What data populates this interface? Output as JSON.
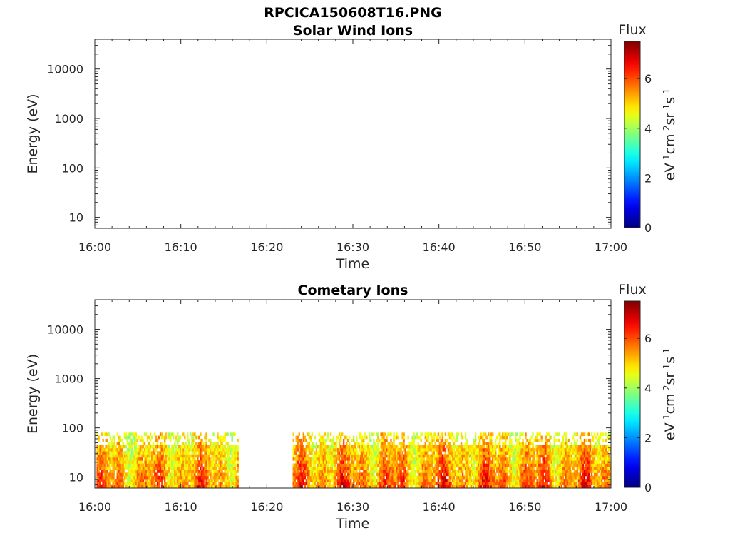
{
  "figure_title": "RPCICA150608T16.PNG",
  "chart_data": [
    {
      "type": "heatmap",
      "title": "Solar Wind Ions",
      "xlabel": "Time",
      "ylabel": "Energy (eV)",
      "x_ticks": [
        "16:00",
        "16:10",
        "16:20",
        "16:30",
        "16:40",
        "16:50",
        "17:00"
      ],
      "x_range_minutes": [
        0,
        60
      ],
      "y_scale": "log",
      "y_ticks": [
        "10",
        "100",
        "1000",
        "10000"
      ],
      "y_range": [
        6,
        40000
      ],
      "colorbar": {
        "label": "Flux",
        "unit_text": "eV-1cm-2sr-1s-1",
        "ticks": [
          "0",
          "2",
          "4",
          "6"
        ],
        "range": [
          0,
          7.5
        ],
        "colormap": "jet"
      },
      "data_segments": []
    },
    {
      "type": "heatmap",
      "title": "Cometary Ions",
      "xlabel": "Time",
      "ylabel": "Energy (eV)",
      "x_ticks": [
        "16:00",
        "16:10",
        "16:20",
        "16:30",
        "16:40",
        "16:50",
        "17:00"
      ],
      "x_range_minutes": [
        0,
        60
      ],
      "y_scale": "log",
      "y_ticks": [
        "10",
        "100",
        "1000",
        "10000"
      ],
      "y_range": [
        6,
        40000
      ],
      "colorbar": {
        "label": "Flux",
        "unit_text": "eV-1cm-2sr-1s-1",
        "ticks": [
          "0",
          "2",
          "4",
          "6"
        ],
        "range": [
          0,
          7.5
        ],
        "colormap": "jet"
      },
      "data_segments": [
        {
          "start_minute": 0.2,
          "end_minute": 16.7,
          "energy_min_eV": 6,
          "energy_max_eV": 80,
          "flux_low": 3.5,
          "flux_high": 6.5
        },
        {
          "start_minute": 23.0,
          "end_minute": 60.0,
          "energy_min_eV": 6,
          "energy_max_eV": 80,
          "flux_low": 3.5,
          "flux_high": 6.8
        }
      ]
    }
  ]
}
